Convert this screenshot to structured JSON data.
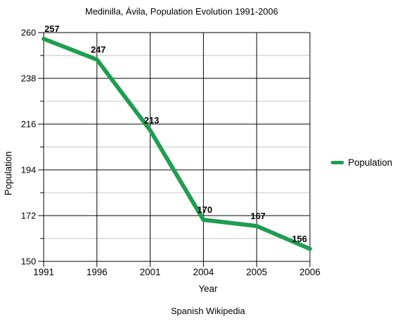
{
  "title": "Medinilla, Ávila, Population Evolution 1991-2006",
  "caption": "Spanish Wikipedia",
  "chart_data": {
    "type": "line",
    "title": "Medinilla, Ávila, Population Evolution 1991-2006",
    "xlabel": "Year",
    "ylabel": "Population",
    "categories": [
      "1991",
      "1996",
      "2001",
      "2004",
      "2005",
      "2006"
    ],
    "series": [
      {
        "name": "Population",
        "values": [
          257,
          247,
          213,
          170,
          167,
          156
        ]
      }
    ],
    "ylim": [
      150,
      260
    ],
    "yticks": [
      150,
      172,
      194,
      216,
      238,
      260
    ],
    "yticks_minor": [
      161,
      183,
      205,
      227,
      249
    ],
    "grid": true,
    "legend_position": "right",
    "line_color": "#1e9e50",
    "grid_major_color": "#000000",
    "grid_minor_color": "#c6c6c6",
    "data_label_color": "#000000",
    "annotation": "Spanish Wikipedia"
  }
}
